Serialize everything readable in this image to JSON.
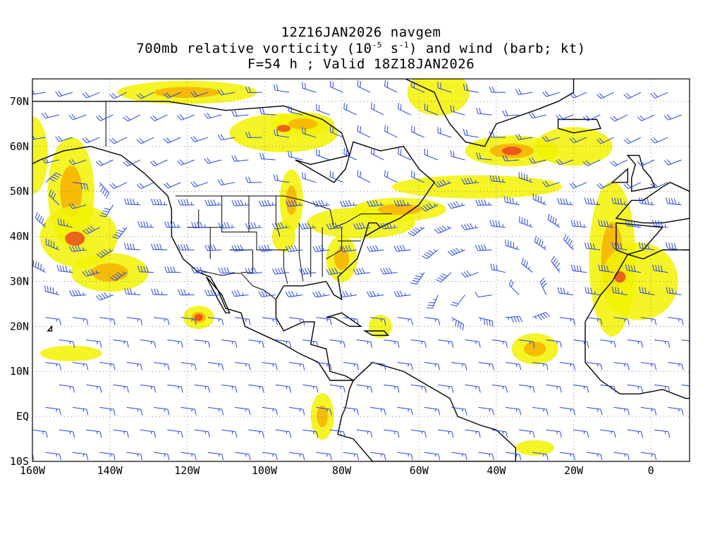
{
  "title": {
    "run": "12Z16JAN2026 navgem",
    "field_prefix": "700mb relative vorticity (10",
    "field_exp1": "-5",
    "field_mid": " s",
    "field_exp2": "-1",
    "field_suffix": ") and wind (barb; kt)",
    "valid": "F=54 h ; Valid 18Z18JAN2026"
  },
  "map": {
    "projection": "cylindrical lat/lon",
    "lon_range": [
      -160,
      10
    ],
    "lat_range": [
      -10,
      75
    ],
    "grid_style": "dotted",
    "lon_labels": [
      "160W",
      "140W",
      "120W",
      "100W",
      "80W",
      "60W",
      "40W",
      "20W",
      "0"
    ],
    "lat_labels": [
      "70N",
      "60N",
      "50N",
      "40N",
      "30N",
      "20N",
      "10N",
      "EQ",
      "10S"
    ],
    "colors": {
      "vorticity_low": "#f2f200",
      "vorticity_mid": "#f7b000",
      "vorticity_high": "#e8401e",
      "wind_barb": "#2244ee",
      "coastline": "#000000"
    }
  }
}
